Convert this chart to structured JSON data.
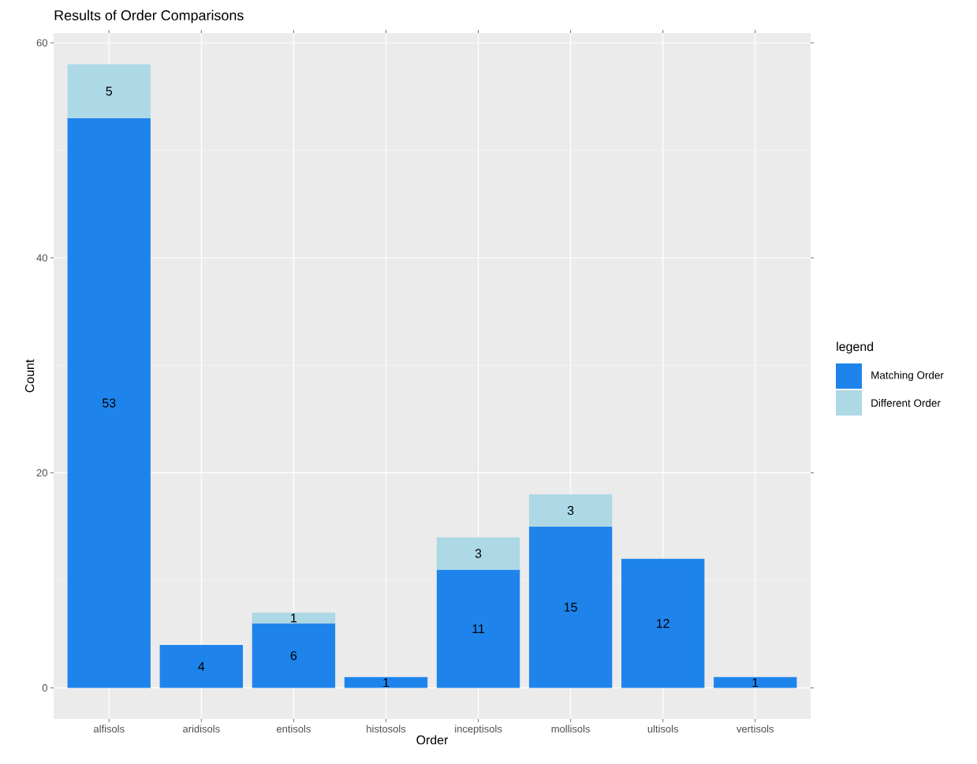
{
  "chart_data": {
    "type": "bar",
    "title": "Results of Order Comparisons",
    "xlabel": "Order",
    "ylabel": "Count",
    "legend_title": "legend",
    "categories": [
      "alfisols",
      "aridisols",
      "entisols",
      "histosols",
      "inceptisols",
      "mollisols",
      "ultisols",
      "vertisols"
    ],
    "stacked": true,
    "series": [
      {
        "name": "Matching Order",
        "color": "#1e84ec",
        "values": [
          53,
          4,
          6,
          1,
          11,
          15,
          12,
          1
        ],
        "value_labels": [
          "53",
          "4",
          "6",
          "1",
          "11",
          "15",
          "12",
          "1"
        ]
      },
      {
        "name": "Different Order",
        "color": "#add8e6",
        "values": [
          5,
          null,
          1,
          null,
          3,
          3,
          null,
          null
        ],
        "value_labels": [
          "5",
          null,
          "1",
          null,
          "3",
          "3",
          null,
          null
        ]
      }
    ],
    "ylim": [
      -2.9,
      60.9
    ],
    "yticks": [
      0,
      20,
      40,
      60
    ],
    "grid": true,
    "legend": "right"
  }
}
